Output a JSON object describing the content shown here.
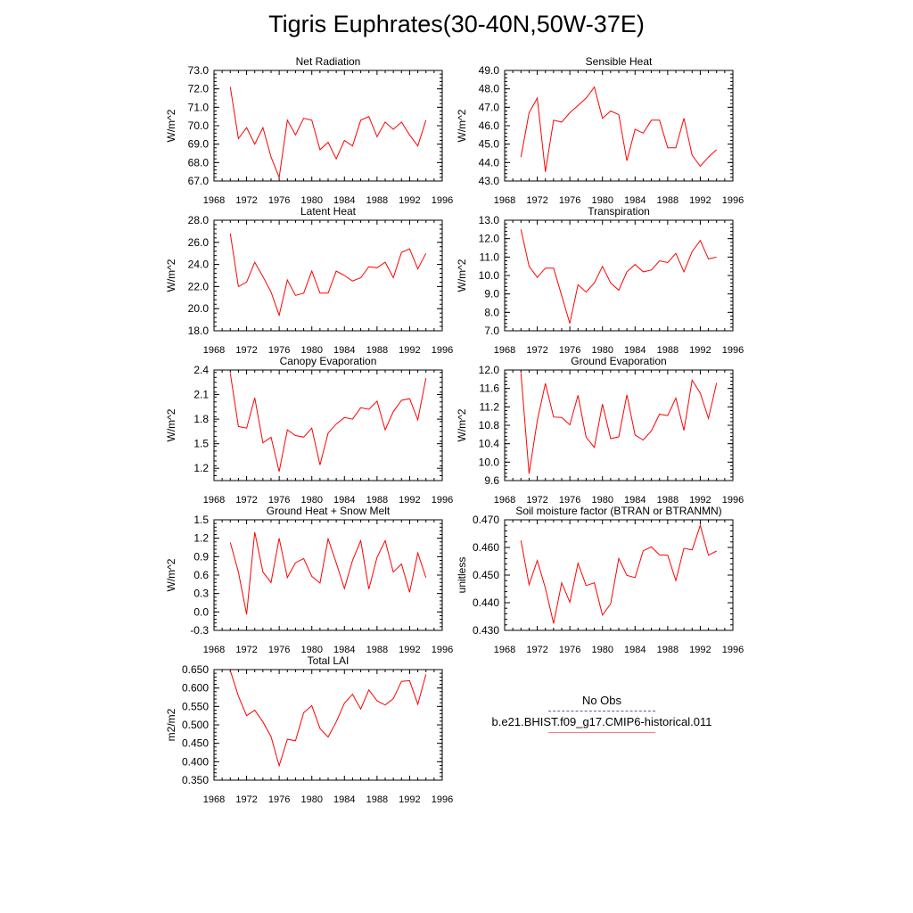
{
  "title": "Tigris Euphrates(30-40N,50W-37E)",
  "line_color": "#ff0000",
  "legend": {
    "obs_label": "No Obs",
    "model_label": "b.e21.BHIST.f09_g17.CMIP6-historical.011",
    "obs_color": "#5b5ba8",
    "model_color": "#f08080"
  },
  "chart_data": [
    {
      "type": "line",
      "title": "Net Radiation",
      "ylabel": "W/m^2",
      "xlim": [
        1968,
        1996
      ],
      "ylim": [
        67.0,
        73.0
      ],
      "xticks": [
        "1968",
        "1972",
        "1976",
        "1980",
        "1984",
        "1988",
        "1992",
        "1996"
      ],
      "yticks": [
        "67.0",
        "68.0",
        "69.0",
        "70.0",
        "71.0",
        "72.0",
        "73.0"
      ],
      "x": [
        1970,
        1971,
        1972,
        1973,
        1974,
        1975,
        1976,
        1977,
        1978,
        1979,
        1980,
        1981,
        1982,
        1983,
        1984,
        1985,
        1986,
        1987,
        1988,
        1989,
        1990,
        1991,
        1992,
        1993,
        1994
      ],
      "values": [
        72.1,
        69.3,
        69.9,
        69.0,
        69.9,
        68.3,
        67.2,
        70.3,
        69.5,
        70.4,
        70.3,
        68.7,
        69.1,
        68.2,
        69.2,
        68.9,
        70.3,
        70.5,
        69.4,
        70.2,
        69.8,
        70.2,
        69.5,
        68.9,
        70.3
      ]
    },
    {
      "type": "line",
      "title": "Sensible Heat",
      "ylabel": "W/m^2",
      "xlim": [
        1968,
        1996
      ],
      "ylim": [
        43.0,
        49.0
      ],
      "xticks": [
        "1968",
        "1972",
        "1976",
        "1980",
        "1984",
        "1988",
        "1992",
        "1996"
      ],
      "yticks": [
        "43.0",
        "44.0",
        "45.0",
        "46.0",
        "47.0",
        "48.0",
        "49.0"
      ],
      "x": [
        1970,
        1971,
        1972,
        1973,
        1974,
        1975,
        1976,
        1977,
        1978,
        1979,
        1980,
        1981,
        1982,
        1983,
        1984,
        1985,
        1986,
        1987,
        1988,
        1989,
        1990,
        1991,
        1992,
        1993,
        1994
      ],
      "values": [
        44.3,
        46.7,
        47.5,
        43.5,
        46.3,
        46.2,
        46.7,
        47.1,
        47.5,
        48.1,
        46.4,
        46.8,
        46.6,
        44.1,
        45.8,
        45.6,
        46.3,
        46.3,
        44.8,
        44.8,
        46.4,
        44.4,
        43.8,
        44.3,
        44.7
      ]
    },
    {
      "type": "line",
      "title": "Latent Heat",
      "ylabel": "W/m^2",
      "xlim": [
        1968,
        1996
      ],
      "ylim": [
        18.0,
        28.0
      ],
      "xticks": [
        "1968",
        "1972",
        "1976",
        "1980",
        "1984",
        "1988",
        "1992",
        "1996"
      ],
      "yticks": [
        "18.0",
        "20.0",
        "22.0",
        "24.0",
        "26.0",
        "28.0"
      ],
      "x": [
        1970,
        1971,
        1972,
        1973,
        1974,
        1975,
        1976,
        1977,
        1978,
        1979,
        1980,
        1981,
        1982,
        1983,
        1984,
        1985,
        1986,
        1987,
        1988,
        1989,
        1990,
        1991,
        1992,
        1993,
        1994
      ],
      "values": [
        26.8,
        22.0,
        22.4,
        24.2,
        22.9,
        21.5,
        19.4,
        22.6,
        21.2,
        21.4,
        23.4,
        21.4,
        21.4,
        23.4,
        23.0,
        22.5,
        22.8,
        23.8,
        23.7,
        24.2,
        22.8,
        25.1,
        25.4,
        23.6,
        25.0
      ]
    },
    {
      "type": "line",
      "title": "Transpiration",
      "ylabel": "W/m^2",
      "xlim": [
        1968,
        1996
      ],
      "ylim": [
        7.0,
        13.0
      ],
      "xticks": [
        "1968",
        "1972",
        "1976",
        "1980",
        "1984",
        "1988",
        "1992",
        "1996"
      ],
      "yticks": [
        "7.0",
        "8.0",
        "9.0",
        "10.0",
        "11.0",
        "12.0",
        "13.0"
      ],
      "x": [
        1970,
        1971,
        1972,
        1973,
        1974,
        1975,
        1976,
        1977,
        1978,
        1979,
        1980,
        1981,
        1982,
        1983,
        1984,
        1985,
        1986,
        1987,
        1988,
        1989,
        1990,
        1991,
        1992,
        1993,
        1994
      ],
      "values": [
        12.5,
        10.5,
        9.9,
        10.4,
        10.4,
        8.9,
        7.4,
        9.5,
        9.1,
        9.6,
        10.5,
        9.6,
        9.2,
        10.2,
        10.6,
        10.2,
        10.3,
        10.8,
        10.7,
        11.2,
        10.2,
        11.3,
        11.9,
        10.9,
        11.0
      ]
    },
    {
      "type": "line",
      "title": "Canopy Evaporation",
      "ylabel": "W/m^2",
      "xlim": [
        1968,
        1996
      ],
      "ylim": [
        1.05,
        2.4
      ],
      "xticks": [
        "1968",
        "1972",
        "1976",
        "1980",
        "1984",
        "1988",
        "1992",
        "1996"
      ],
      "yticks": [
        "1.2",
        "1.5",
        "1.8",
        "2.1",
        "2.4"
      ],
      "x": [
        1970,
        1971,
        1972,
        1973,
        1974,
        1975,
        1976,
        1977,
        1978,
        1979,
        1980,
        1981,
        1982,
        1983,
        1984,
        1985,
        1986,
        1987,
        1988,
        1989,
        1990,
        1991,
        1992,
        1993,
        1994
      ],
      "values": [
        2.36,
        1.71,
        1.69,
        2.06,
        1.51,
        1.58,
        1.16,
        1.67,
        1.6,
        1.58,
        1.69,
        1.24,
        1.63,
        1.74,
        1.82,
        1.8,
        1.94,
        1.92,
        2.02,
        1.67,
        1.89,
        2.03,
        2.05,
        1.79,
        2.3
      ]
    },
    {
      "type": "line",
      "title": "Ground Evaporation",
      "ylabel": "W/m^2",
      "xlim": [
        1968,
        1996
      ],
      "ylim": [
        9.6,
        12.0
      ],
      "xticks": [
        "1968",
        "1972",
        "1976",
        "1980",
        "1984",
        "1988",
        "1992",
        "1996"
      ],
      "yticks": [
        "9.6",
        "10.0",
        "10.4",
        "10.8",
        "11.2",
        "11.6",
        "12.0"
      ],
      "x": [
        1970,
        1971,
        1972,
        1973,
        1974,
        1975,
        1976,
        1977,
        1978,
        1979,
        1980,
        1981,
        1982,
        1983,
        1984,
        1985,
        1986,
        1987,
        1988,
        1989,
        1990,
        1991,
        1992,
        1993,
        1994
      ],
      "values": [
        11.93,
        9.75,
        10.9,
        11.71,
        10.98,
        10.97,
        10.81,
        11.45,
        10.54,
        10.32,
        11.26,
        10.51,
        10.55,
        11.46,
        10.59,
        10.48,
        10.68,
        11.04,
        11.01,
        11.39,
        10.69,
        11.78,
        11.5,
        10.95,
        11.72
      ]
    },
    {
      "type": "line",
      "title": "Ground Heat + Snow Melt",
      "ylabel": "W/m^2",
      "xlim": [
        1968,
        1996
      ],
      "ylim": [
        -0.3,
        1.5
      ],
      "xticks": [
        "1968",
        "1972",
        "1976",
        "1980",
        "1984",
        "1988",
        "1992",
        "1996"
      ],
      "yticks": [
        "-0.3",
        "0.0",
        "0.3",
        "0.6",
        "0.9",
        "1.2",
        "1.5"
      ],
      "x": [
        1970,
        1971,
        1972,
        1973,
        1974,
        1975,
        1976,
        1977,
        1978,
        1979,
        1980,
        1981,
        1982,
        1983,
        1984,
        1985,
        1986,
        1987,
        1988,
        1989,
        1990,
        1991,
        1992,
        1993,
        1994
      ],
      "values": [
        1.13,
        0.65,
        -0.04,
        1.3,
        0.65,
        0.48,
        1.2,
        0.56,
        0.8,
        0.87,
        0.58,
        0.47,
        1.19,
        0.8,
        0.38,
        0.84,
        1.16,
        0.37,
        0.89,
        1.16,
        0.65,
        0.78,
        0.32,
        0.96,
        0.56
      ]
    },
    {
      "type": "line",
      "title": "Soil moisture factor (BTRAN or BTRANMN)",
      "ylabel": "unitless",
      "xlim": [
        1968,
        1996
      ],
      "ylim": [
        0.43,
        0.47
      ],
      "xticks": [
        "1968",
        "1972",
        "1976",
        "1980",
        "1984",
        "1988",
        "1992",
        "1996"
      ],
      "yticks": [
        "0.430",
        "0.440",
        "0.450",
        "0.460",
        "0.470"
      ],
      "x": [
        1970,
        1971,
        1972,
        1973,
        1974,
        1975,
        1976,
        1977,
        1978,
        1979,
        1980,
        1981,
        1982,
        1983,
        1984,
        1985,
        1986,
        1987,
        1988,
        1989,
        1990,
        1991,
        1992,
        1993,
        1994
      ],
      "values": [
        0.4625,
        0.4465,
        0.4553,
        0.4453,
        0.4325,
        0.4472,
        0.4402,
        0.4543,
        0.4462,
        0.4472,
        0.4355,
        0.4396,
        0.456,
        0.4499,
        0.4491,
        0.4588,
        0.4602,
        0.4573,
        0.4572,
        0.448,
        0.4597,
        0.4591,
        0.468,
        0.4572,
        0.4587
      ]
    },
    {
      "type": "line",
      "title": "Total LAI",
      "ylabel": "m2/m2",
      "xlim": [
        1968,
        1996
      ],
      "ylim": [
        0.35,
        0.65
      ],
      "xticks": [
        "1968",
        "1972",
        "1976",
        "1980",
        "1984",
        "1988",
        "1992",
        "1996"
      ],
      "yticks": [
        "0.350",
        "0.400",
        "0.450",
        "0.500",
        "0.550",
        "0.600",
        "0.650"
      ],
      "x": [
        1970,
        1971,
        1972,
        1973,
        1974,
        1975,
        1976,
        1977,
        1978,
        1979,
        1980,
        1981,
        1982,
        1983,
        1984,
        1985,
        1986,
        1987,
        1988,
        1989,
        1990,
        1991,
        1992,
        1993,
        1994
      ],
      "values": [
        0.647,
        0.578,
        0.525,
        0.54,
        0.508,
        0.468,
        0.389,
        0.461,
        0.457,
        0.533,
        0.552,
        0.49,
        0.467,
        0.508,
        0.559,
        0.583,
        0.543,
        0.595,
        0.565,
        0.554,
        0.571,
        0.618,
        0.62,
        0.556,
        0.637
      ]
    }
  ]
}
